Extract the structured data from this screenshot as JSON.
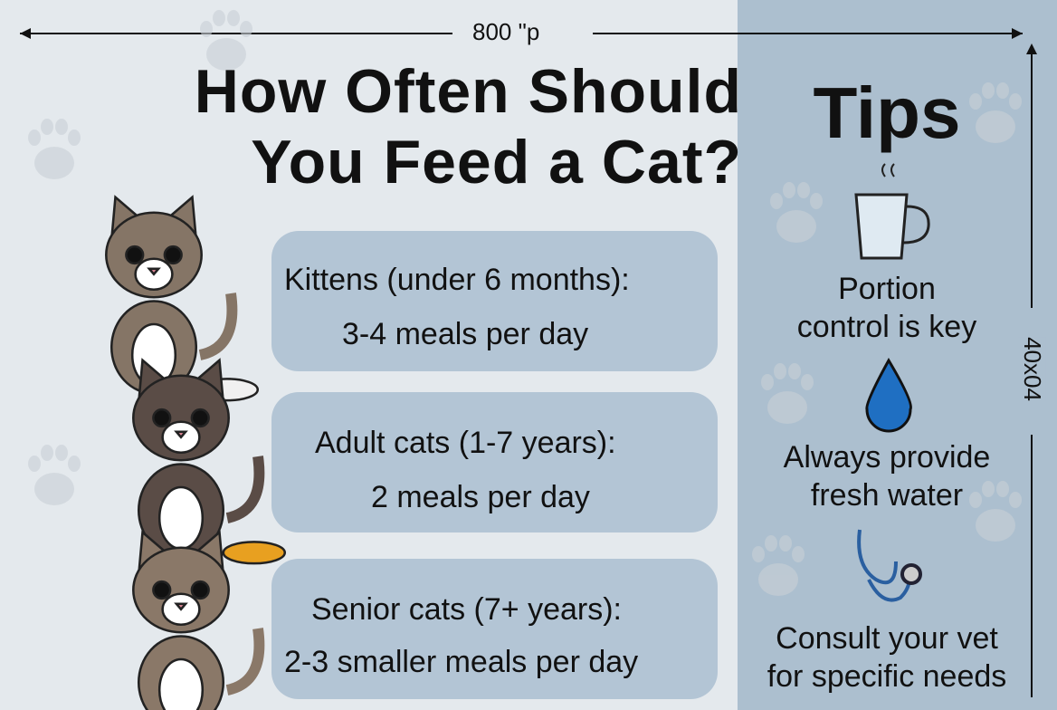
{
  "header": {
    "width_label": "800 \"p",
    "height_label": "40x04",
    "title": [
      "How Often Should",
      "You Feed a Cat?"
    ]
  },
  "cards": [
    {
      "group": "Kittens (under 6 months):",
      "meals": "3-4 meals per day"
    },
    {
      "group": "Adult cats (1-7 years):",
      "meals": "2 meals per day"
    },
    {
      "group": "Senior cats (7+ years):",
      "meals": "2-3 smaller meals per day"
    }
  ],
  "tips": {
    "title": "Tips",
    "items": [
      [
        "Portion",
        "control is key"
      ],
      [
        "Always provide",
        "fresh water"
      ],
      [
        "Consult your vet",
        "for specific needs"
      ]
    ]
  }
}
